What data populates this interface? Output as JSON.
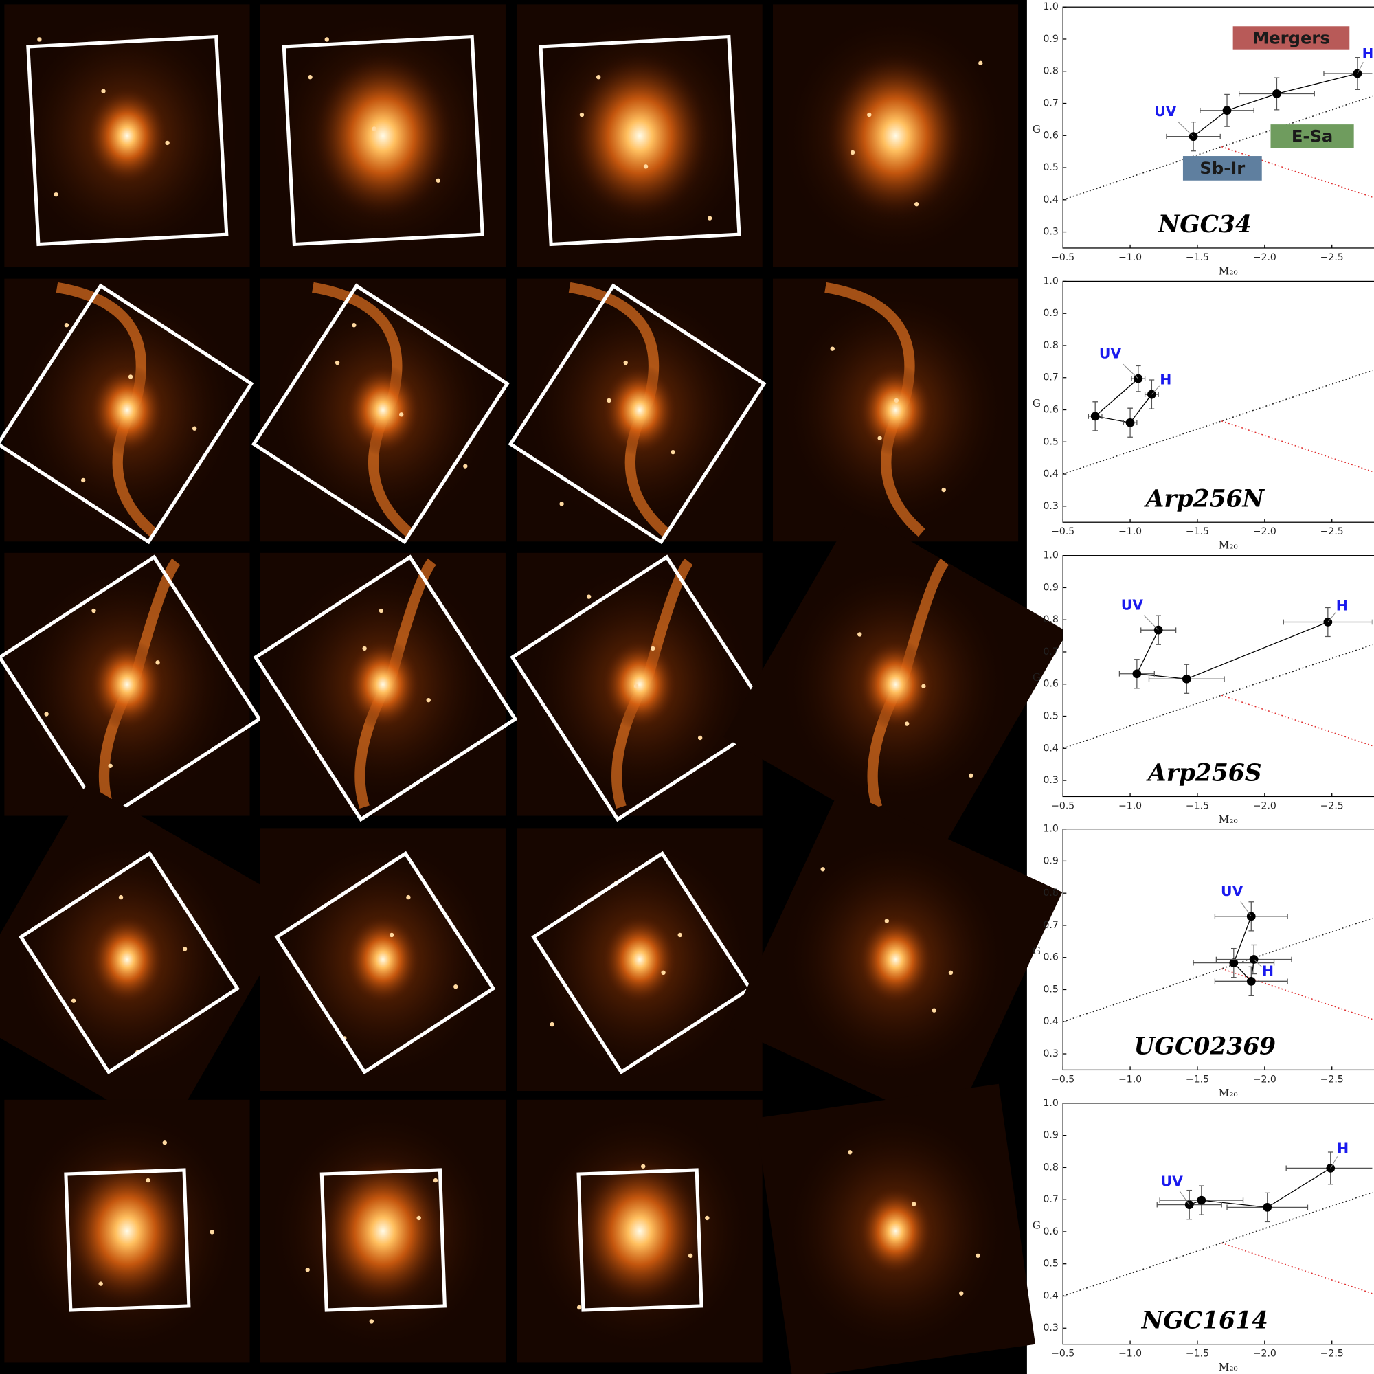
{
  "chart_data": [
    {
      "type": "line",
      "title": "NGC34",
      "x_label": "M₂₀",
      "y_label": "G",
      "xlim": [
        -0.5,
        -2.8
      ],
      "ylim": [
        0.25,
        1
      ],
      "xticks": [
        {
          "value": -0.5,
          "label": "−0.5"
        },
        {
          "value": -1,
          "label": "−1.0"
        },
        {
          "value": -1.5,
          "label": "−1.5"
        },
        {
          "value": -2,
          "label": "−2.0"
        },
        {
          "value": -2.5,
          "label": "−2.5"
        }
      ],
      "yticks": [
        0.3,
        0.4,
        0.5,
        0.6,
        0.7,
        0.8,
        0.9,
        {
          "value": 1,
          "label": "1.0"
        }
      ],
      "series": [
        {
          "color": "#000000",
          "x": [
            -1.47,
            -1.72,
            -2.09,
            -2.69
          ],
          "values": [
            0.597,
            0.678,
            0.73,
            0.793
          ],
          "xerr": [
            0.2,
            0.2,
            0.28,
            0.25
          ],
          "yerr": [
            0.045,
            0.05,
            0.05,
            0.05
          ],
          "point_labels": [
            "UV",
            null,
            null,
            "H"
          ],
          "label_color": "#1a1aee"
        }
      ],
      "reference_lines": [
        {
          "x": [
            -0.5,
            -2.8
          ],
          "y": [
            0.4,
            0.722
          ],
          "color": "#222222"
        },
        {
          "x": [
            -1.68,
            -2.8
          ],
          "y": [
            0.565,
            0.408
          ],
          "color": "#e03030"
        }
      ],
      "regions": [
        {
          "text": "Mergers",
          "color": "#b85a58"
        },
        {
          "text": "E-Sa",
          "color": "#6f9c5e"
        },
        {
          "text": "Sb-Ir",
          "color": "#5f7f9f"
        }
      ]
    },
    {
      "type": "line",
      "title": "Arp256N",
      "x_label": "M₂₀",
      "y_label": "G",
      "xlim": [
        -0.5,
        -2.8
      ],
      "ylim": [
        0.25,
        1
      ],
      "xticks": [
        {
          "value": -0.5,
          "label": "−0.5"
        },
        {
          "value": -1,
          "label": "−1.0"
        },
        {
          "value": -1.5,
          "label": "−1.5"
        },
        {
          "value": -2,
          "label": "−2.0"
        },
        {
          "value": -2.5,
          "label": "−2.5"
        }
      ],
      "yticks": [
        0.3,
        0.4,
        0.5,
        0.6,
        0.7,
        0.8,
        0.9,
        {
          "value": 1,
          "label": "1.0"
        }
      ],
      "series": [
        {
          "color": "#000000",
          "x": [
            -1.06,
            -0.74,
            -1.0,
            -1.16
          ],
          "values": [
            0.697,
            0.58,
            0.56,
            0.648
          ],
          "xerr": [
            0.05,
            0.05,
            0.05,
            0.05
          ],
          "yerr": [
            0.04,
            0.045,
            0.045,
            0.045
          ],
          "point_labels": [
            "UV",
            null,
            null,
            "H"
          ],
          "label_color": "#1a1aee"
        }
      ],
      "reference_lines": [
        {
          "x": [
            -0.5,
            -2.8
          ],
          "y": [
            0.4,
            0.722
          ],
          "color": "#222222"
        },
        {
          "x": [
            -1.68,
            -2.8
          ],
          "y": [
            0.565,
            0.408
          ],
          "color": "#e03030"
        }
      ]
    },
    {
      "type": "line",
      "title": "Arp256S",
      "x_label": "M₂₀",
      "y_label": "G",
      "xlim": [
        -0.5,
        -2.8
      ],
      "ylim": [
        0.25,
        1
      ],
      "xticks": [
        {
          "value": -0.5,
          "label": "−0.5"
        },
        {
          "value": -1,
          "label": "−1.0"
        },
        {
          "value": -1.5,
          "label": "−1.5"
        },
        {
          "value": -2,
          "label": "−2.0"
        },
        {
          "value": -2.5,
          "label": "−2.5"
        }
      ],
      "yticks": [
        0.3,
        0.4,
        0.5,
        0.6,
        0.7,
        0.8,
        0.9,
        {
          "value": 1,
          "label": "1.0"
        }
      ],
      "series": [
        {
          "color": "#000000",
          "x": [
            -1.21,
            -1.05,
            -1.42,
            -2.47
          ],
          "values": [
            0.768,
            0.632,
            0.616,
            0.793
          ],
          "xerr": [
            0.13,
            0.13,
            0.28,
            0.33
          ],
          "yerr": [
            0.045,
            0.045,
            0.045,
            0.045
          ],
          "point_labels": [
            "UV",
            null,
            null,
            "H"
          ],
          "label_color": "#1a1aee"
        }
      ],
      "reference_lines": [
        {
          "x": [
            -0.5,
            -2.8
          ],
          "y": [
            0.4,
            0.722
          ],
          "color": "#222222"
        },
        {
          "x": [
            -1.68,
            -2.8
          ],
          "y": [
            0.565,
            0.408
          ],
          "color": "#e03030"
        }
      ]
    },
    {
      "type": "line",
      "title": "UGC02369",
      "x_label": "M₂₀",
      "y_label": "G",
      "xlim": [
        -0.5,
        -2.8
      ],
      "ylim": [
        0.25,
        1
      ],
      "xticks": [
        {
          "value": -0.5,
          "label": "−0.5"
        },
        {
          "value": -1,
          "label": "−1.0"
        },
        {
          "value": -1.5,
          "label": "−1.5"
        },
        {
          "value": -2,
          "label": "−2.0"
        },
        {
          "value": -2.5,
          "label": "−2.5"
        }
      ],
      "yticks": [
        0.3,
        0.4,
        0.5,
        0.6,
        0.7,
        0.8,
        0.9,
        {
          "value": 1,
          "label": "1.0"
        }
      ],
      "series": [
        {
          "color": "#000000",
          "x": [
            -1.9,
            -1.77,
            -1.9,
            -1.92
          ],
          "values": [
            0.728,
            0.583,
            0.526,
            0.594
          ],
          "xerr": [
            0.27,
            0.3,
            0.27,
            0.28
          ],
          "yerr": [
            0.045,
            0.045,
            0.045,
            0.045
          ],
          "point_labels": [
            "UV",
            null,
            null,
            "H"
          ],
          "label_color": "#1a1aee"
        }
      ],
      "reference_lines": [
        {
          "x": [
            -0.5,
            -2.8
          ],
          "y": [
            0.4,
            0.722
          ],
          "color": "#222222"
        },
        {
          "x": [
            -1.68,
            -2.8
          ],
          "y": [
            0.565,
            0.408
          ],
          "color": "#e03030"
        }
      ]
    },
    {
      "type": "line",
      "title": "NGC1614",
      "x_label": "M₂₀",
      "y_label": "G",
      "xlim": [
        -0.5,
        -2.8
      ],
      "ylim": [
        0.25,
        1
      ],
      "xticks": [
        {
          "value": -0.5,
          "label": "−0.5"
        },
        {
          "value": -1,
          "label": "−1.0"
        },
        {
          "value": -1.5,
          "label": "−1.5"
        },
        {
          "value": -2,
          "label": "−2.0"
        },
        {
          "value": -2.5,
          "label": "−2.5"
        }
      ],
      "yticks": [
        0.3,
        0.4,
        0.5,
        0.6,
        0.7,
        0.8,
        0.9,
        {
          "value": 1,
          "label": "1.0"
        }
      ],
      "series": [
        {
          "color": "#000000",
          "x": [
            -1.44,
            -1.53,
            -2.02,
            -2.49
          ],
          "values": [
            0.684,
            0.698,
            0.676,
            0.798
          ],
          "xerr": [
            0.24,
            0.31,
            0.3,
            0.33
          ],
          "yerr": [
            0.045,
            0.045,
            0.045,
            0.05
          ],
          "point_labels": [
            "UV",
            null,
            null,
            "H"
          ],
          "label_color": "#1a1aee"
        }
      ],
      "reference_lines": [
        {
          "x": [
            -0.5,
            -2.8
          ],
          "y": [
            0.4,
            0.722
          ],
          "color": "#222222"
        },
        {
          "x": [
            -1.68,
            -2.8
          ],
          "y": [
            0.565,
            0.408
          ],
          "color": "#e03030"
        }
      ]
    }
  ]
}
